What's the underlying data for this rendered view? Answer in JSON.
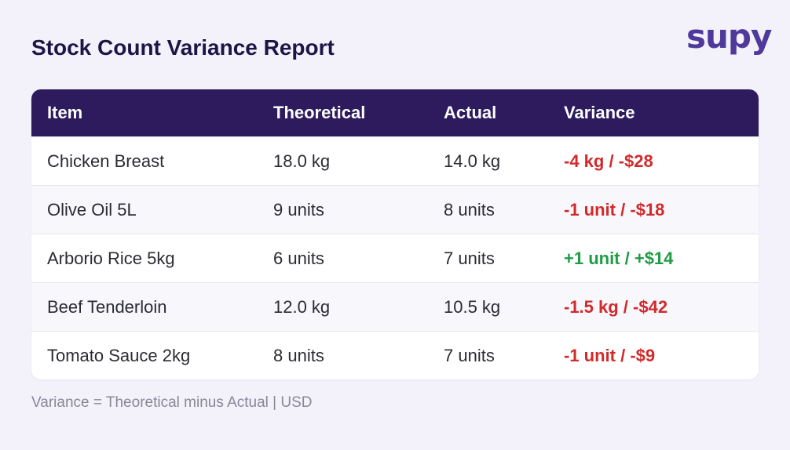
{
  "report": {
    "title": "Stock Count Variance Report",
    "logo_text": "supy",
    "footnote": "Variance = Theoretical minus Actual | USD"
  },
  "table": {
    "headers": [
      "Item",
      "Theoretical",
      "Actual",
      "Variance"
    ],
    "rows": [
      {
        "item": "Chicken Breast",
        "theoretical": "18.0 kg",
        "actual": "14.0 kg",
        "variance": "-4 kg / -$28",
        "direction": "negative"
      },
      {
        "item": "Olive Oil 5L",
        "theoretical": "9 units",
        "actual": "8 units",
        "variance": "-1 unit / -$18",
        "direction": "negative"
      },
      {
        "item": "Arborio Rice 5kg",
        "theoretical": "6 units",
        "actual": "7 units",
        "variance": "+1 unit / +$14",
        "direction": "positive"
      },
      {
        "item": "Beef Tenderloin",
        "theoretical": "12.0 kg",
        "actual": "10.5 kg",
        "variance": "-1.5 kg / -$42",
        "direction": "negative"
      },
      {
        "item": "Tomato Sauce 2kg",
        "theoretical": "8 units",
        "actual": "7 units",
        "variance": "-1 unit / -$9",
        "direction": "negative"
      }
    ]
  },
  "colors": {
    "header_bg": "#2d1b5e",
    "title": "#1d1546",
    "logo": "#4f3a9c",
    "negative": "#d22a2a",
    "positive": "#1f9d44",
    "page_bg": "#f3f1fa"
  }
}
